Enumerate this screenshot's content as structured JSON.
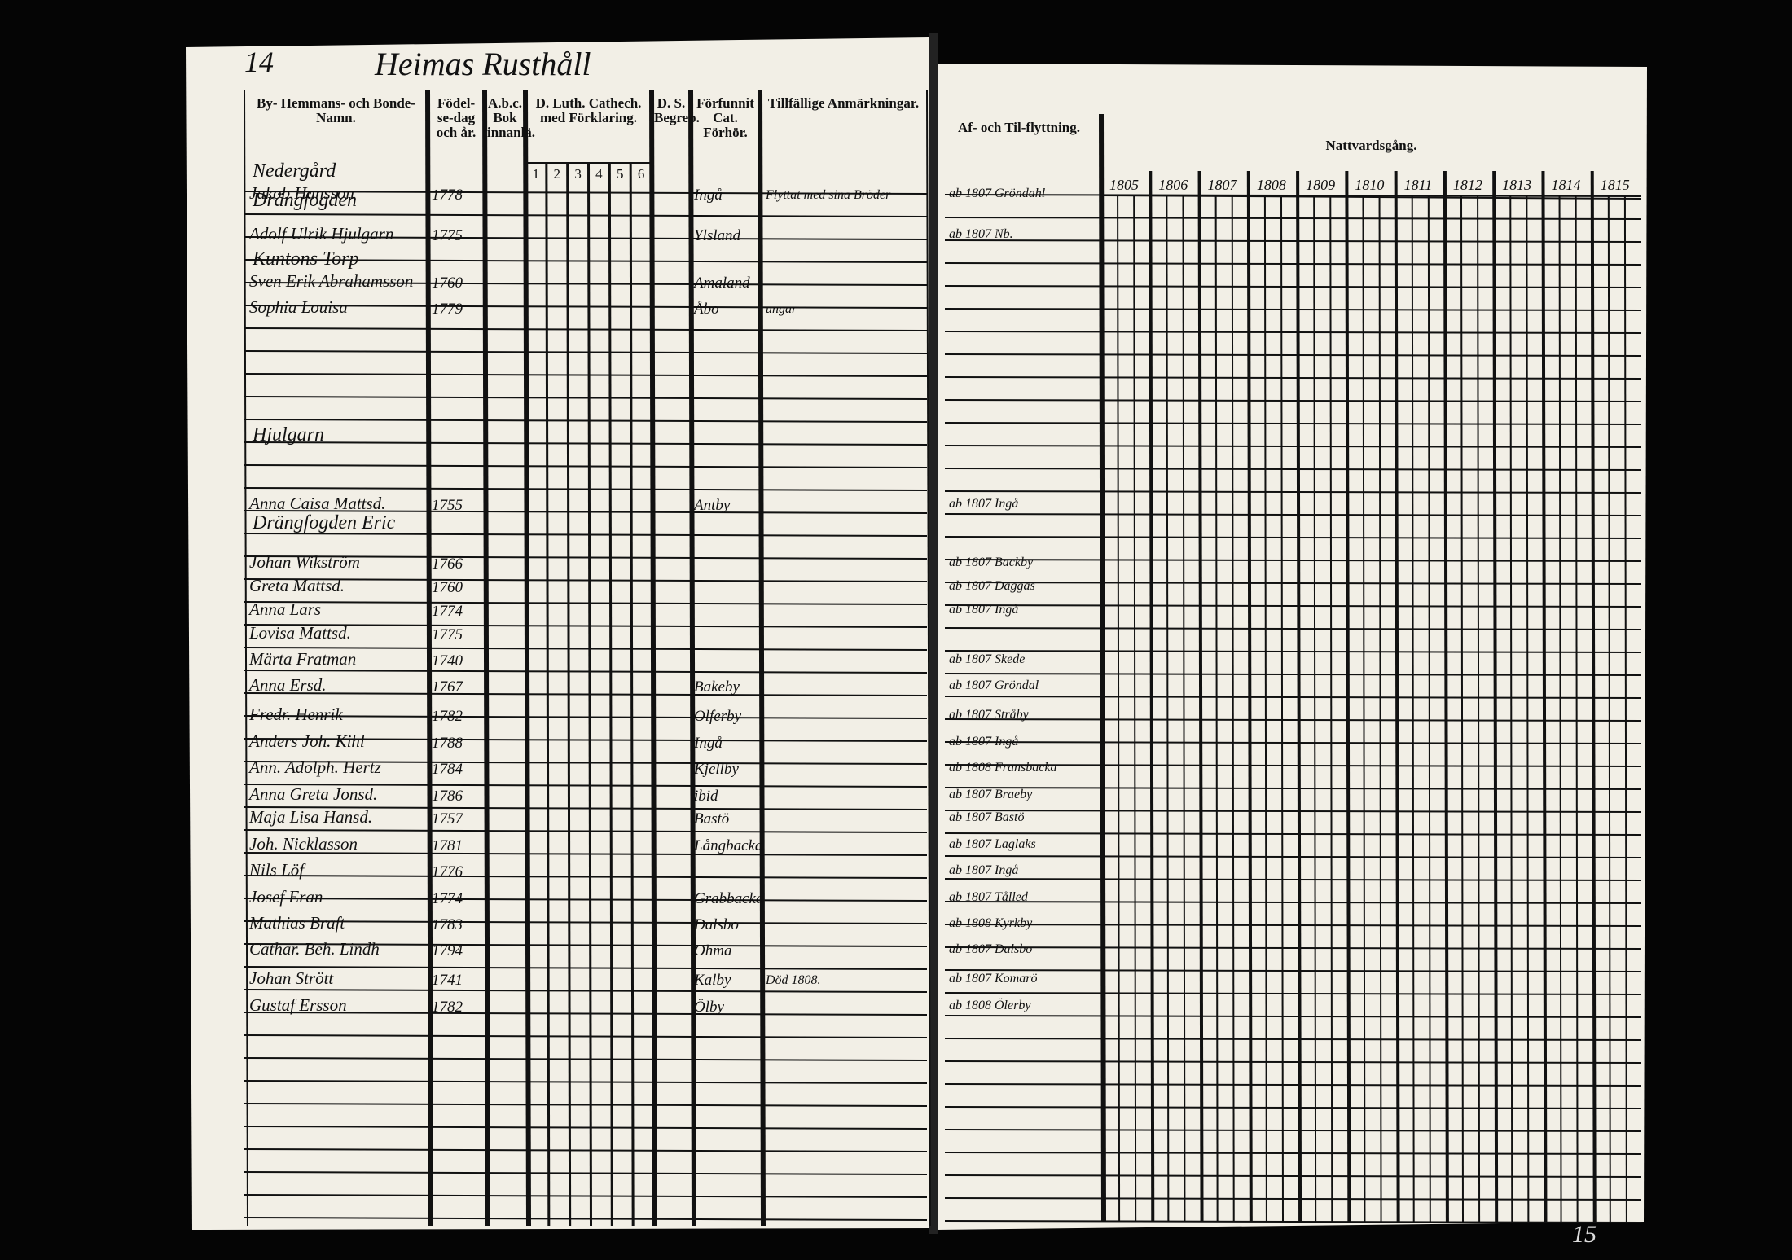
{
  "header": {
    "page_left": "14",
    "title": "Heimas Rusthåll",
    "page_right": "15"
  },
  "left_columns": [
    "By- Hemmans- och Bonde-Namn.",
    "Födel-se-dag och år.",
    "A.b.c. Bok innanlä.",
    "D. Luth. Cathech. med Förklaring.",
    "D. S. Begrep.",
    "Förfunnit Cat. Förhör.",
    "Tillfällige Anmärkningar."
  ],
  "catech_columns": [
    "1",
    "2",
    "3",
    "4",
    "5",
    "6"
  ],
  "right_columns": [
    "Af- och Til-flyttning.",
    "Nattvardsgång."
  ],
  "years": [
    "1805",
    "1806",
    "1807",
    "1808",
    "1809",
    "1810",
    "1811",
    "1812",
    "1813",
    "1814",
    "1815"
  ],
  "sections": [
    {
      "text": "Nedergård",
      "row": 0
    },
    {
      "text": "Drängfogden",
      "row": 1
    },
    {
      "text": "Kuntons Torp",
      "row": 3
    },
    {
      "text": "Hjulgarn",
      "row": 9
    },
    {
      "text": "Drängfogden Eric",
      "row": 12
    }
  ],
  "rows": [
    {
      "name": "Jakob Hansson",
      "born": "1778",
      "place": "Ingå",
      "moved": "ab 1807 Gröndahl",
      "note": "Flyttat med sina Bröder"
    },
    {
      "name": "Adolf Ulrik Hjulgarn",
      "born": "1775",
      "place": "Ylsland",
      "moved": "ab 1807 Nb."
    },
    {
      "name": "Sven Erik Abrahamsson",
      "born": "1760",
      "place": "Amaland"
    },
    {
      "name": "Sophia Louisa",
      "born": "1779",
      "place": "Åbo",
      "note": "ungar"
    },
    {
      "name": "Anna Caisa Mattsd.",
      "born": "1755",
      "place": "Antby",
      "moved": "ab 1807 Ingå"
    },
    {
      "name": "Johan Wikström",
      "born": "1766",
      "moved": "ab 1807 Backby"
    },
    {
      "name": "Greta Mattsd.",
      "born": "1760",
      "moved": "ab 1807 Daggas"
    },
    {
      "name": "Anna Lars",
      "born": "1774",
      "moved": "ab 1807 Ingå"
    },
    {
      "name": "Lovisa Mattsd.",
      "born": "1775"
    },
    {
      "name": "Märta Fratman",
      "born": "1740",
      "moved": "ab 1807 Skede"
    },
    {
      "name": "Anna Ersd.",
      "born": "1767",
      "place": "Bakeby",
      "moved": "ab 1807 Gröndal"
    },
    {
      "name": "Fredr. Henrik",
      "born": "1782",
      "place": "Olferby",
      "moved": "ab 1807 Stråby"
    },
    {
      "name": "Anders Joh. Kihl",
      "born": "1788",
      "place": "Ingå",
      "moved": "ab 1807 Ingå"
    },
    {
      "name": "Ann. Adolph. Hertz",
      "born": "1784",
      "place": "Kjellby",
      "moved": "ab 1808 Fransbacka"
    },
    {
      "name": "Anna Greta Jonsd.",
      "born": "1786",
      "place": "ibid",
      "moved": "ab 1807 Braeby"
    },
    {
      "name": "Maja Lisa Hansd.",
      "born": "1757",
      "place": "Bastö",
      "moved": "ab 1807 Bastö"
    },
    {
      "name": "Joh. Nicklasson",
      "born": "1781",
      "place": "Långbacka",
      "moved": "ab 1807 Laglaks"
    },
    {
      "name": "Nils Löf",
      "born": "1776",
      "moved": "ab 1807 Ingå"
    },
    {
      "name": "Josef Eran",
      "born": "1774",
      "place": "Grabbacka",
      "moved": "ab 1807 Tålled"
    },
    {
      "name": "Mathias Braft",
      "born": "1783",
      "place": "Dalsbo",
      "moved": "ab 1808 Kyrkby"
    },
    {
      "name": "Cathar. Beh. Lindh",
      "born": "1794",
      "place": "Ohma",
      "moved": "ab 1807 Dalsbo"
    },
    {
      "name": "Johan Strött",
      "born": "1741",
      "place": "Kalby",
      "note": "Död 1808.",
      "moved": "ab 1807 Komarö"
    },
    {
      "name": "Gustaf Ersson",
      "born": "1782",
      "place": "Ölby",
      "moved": "ab 1808 Ölerby"
    }
  ]
}
